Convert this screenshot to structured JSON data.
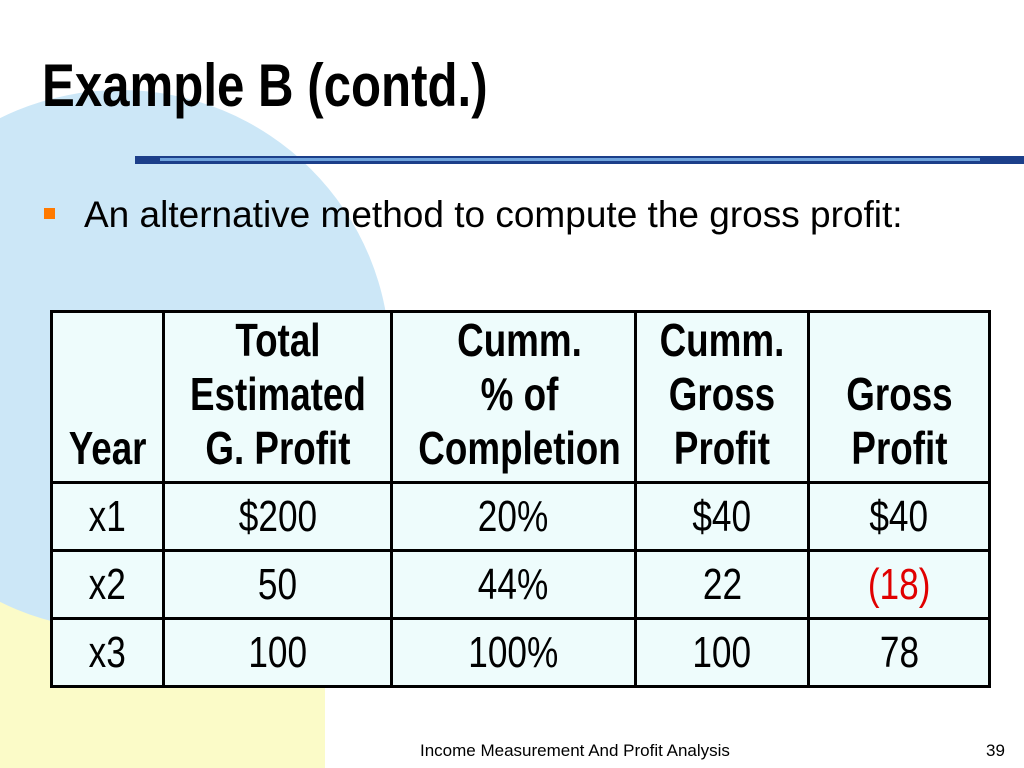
{
  "slide": {
    "title": "Example B (contd.)",
    "bullet": "An alternative method to compute the gross profit:",
    "footer": "Income Measurement And Profit Analysis",
    "page_number": "39"
  },
  "table": {
    "headers": [
      [
        "Year"
      ],
      [
        "Total",
        "Estimated",
        "G. Profit"
      ],
      [
        "Cumm.",
        "% of",
        "Completion"
      ],
      [
        "Cumm.",
        "Gross",
        "Profit"
      ],
      [
        "Gross",
        "Profit"
      ]
    ],
    "rows": [
      [
        "x1",
        "$200",
        "20%",
        "$40",
        "$40"
      ],
      [
        "x2",
        "50",
        "44%",
        "22",
        "(18)"
      ],
      [
        "x3",
        "100",
        "100%",
        "100",
        "78"
      ]
    ]
  },
  "colors": {
    "table_background": "#eefcfc",
    "negative_value": "#e00000",
    "bullet_marker": "#ff7a00",
    "title_rule": "#1c3f8a",
    "background_circle": "#cce7f7",
    "background_band": "#fbfbc8"
  }
}
